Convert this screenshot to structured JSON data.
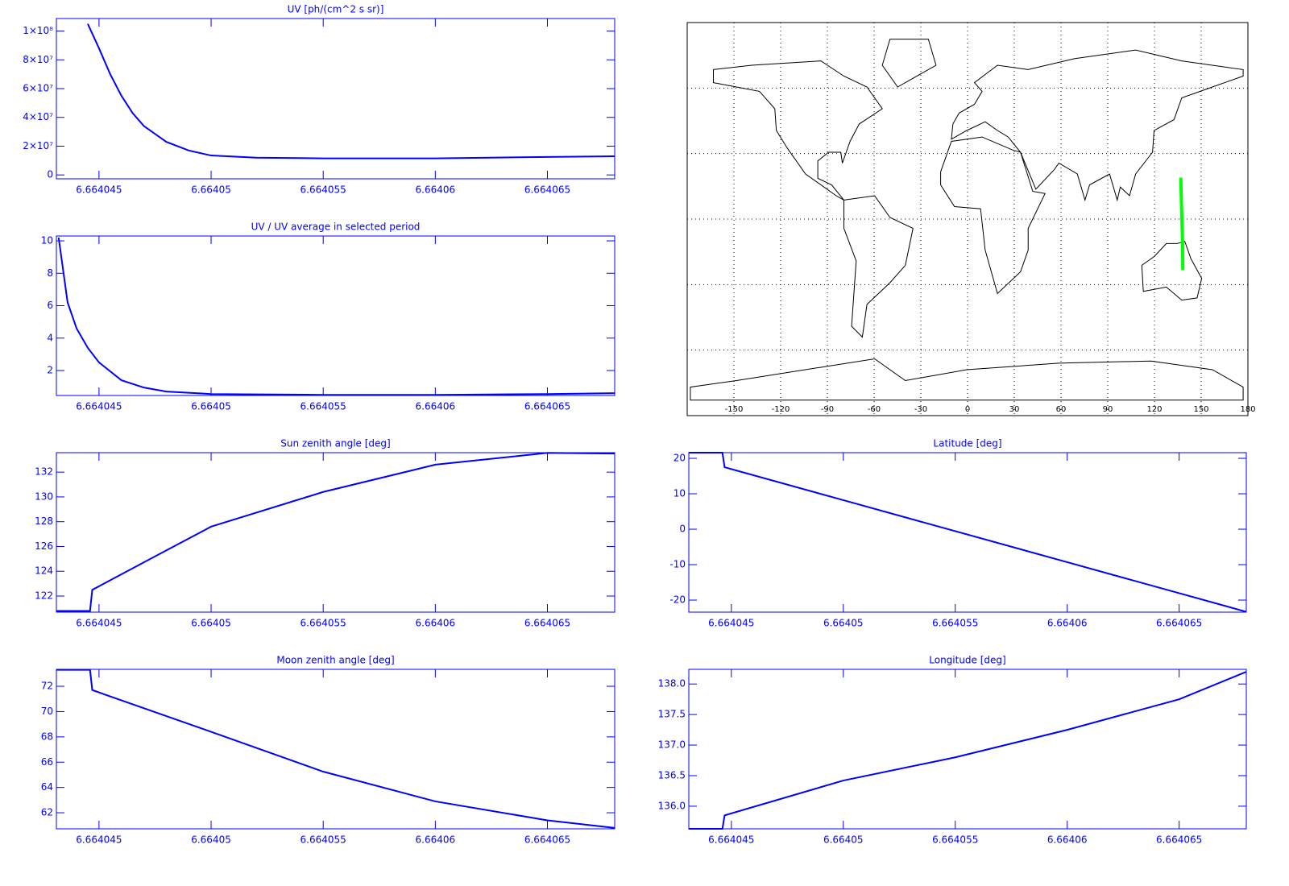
{
  "chart_data": [
    {
      "type": "line",
      "title": "UV [ph/(cm^2 s sr)]",
      "color": "#0000ff",
      "x": [
        6.6640445,
        6.664045,
        6.6640455,
        6.664046,
        6.6640465,
        6.664047,
        6.664048,
        6.664049,
        6.66405,
        6.664052,
        6.664055,
        6.66406,
        6.664065,
        6.664068
      ],
      "values": [
        105000000,
        88000000,
        70000000,
        55000000,
        43000000,
        34000000,
        23000000,
        17000000,
        13500000,
        12000000,
        11500000,
        11500000,
        12500000,
        13000000
      ],
      "xlim": [
        6.6640431,
        6.664068
      ],
      "ylim": [
        -2700000,
        108700000
      ],
      "xticks": [
        6.664045,
        6.66405,
        6.664055,
        6.66406,
        6.664065
      ],
      "yticks": [
        0,
        {
          "value": 20000000,
          "label": "2×10⁷"
        },
        {
          "value": 40000000,
          "label": "4×10⁷"
        },
        {
          "value": 60000000,
          "label": "6×10⁷"
        },
        {
          "value": 80000000,
          "label": "8×10⁷"
        },
        {
          "value": 100000000,
          "label": "1×10⁸"
        }
      ]
    },
    {
      "type": "line",
      "title": "UV / UV average in selected period",
      "color": "#0000ff",
      "x": [
        6.6640432,
        6.6640436,
        6.664044,
        6.6640445,
        6.664045,
        6.664046,
        6.664047,
        6.664048,
        6.66405,
        6.664055,
        6.66406,
        6.664065,
        6.664068
      ],
      "values": [
        10.2,
        6.2,
        4.6,
        3.4,
        2.5,
        1.4,
        0.95,
        0.7,
        0.55,
        0.5,
        0.5,
        0.55,
        0.6
      ],
      "xlim": [
        6.6640431,
        6.664068
      ],
      "ylim": [
        0.46,
        10.3
      ],
      "xticks": [
        6.664045,
        6.66405,
        6.664055,
        6.66406,
        6.664065
      ],
      "yticks": [
        2,
        4,
        6,
        8,
        10
      ]
    },
    {
      "type": "map",
      "color": "#00ff00",
      "lon": [
        136.9,
        137.4,
        138.0,
        138.2
      ],
      "lat": [
        19,
        5,
        -10,
        -23.3
      ],
      "xlim": [
        -180,
        180
      ],
      "ylim": [
        -90,
        90
      ],
      "xticks": [
        -150,
        -120,
        -90,
        -60,
        -30,
        0,
        30,
        60,
        90,
        120,
        150,
        180
      ],
      "lat_grid": [
        -60,
        -30,
        0,
        30,
        60,
        90
      ]
    },
    {
      "type": "line",
      "title": "Sun zenith angle [deg]",
      "color": "#0000ff",
      "x": [
        6.6640431,
        6.6640446,
        6.6640447,
        6.6640475,
        6.66405,
        6.664055,
        6.66406,
        6.664065,
        6.664068
      ],
      "values": [
        120.8,
        120.8,
        122.5,
        125.2,
        127.6,
        130.4,
        132.6,
        133.55,
        133.5
      ],
      "xlim": [
        6.6640431,
        6.664068
      ],
      "ylim": [
        120.7,
        133.57
      ],
      "xticks": [
        6.664045,
        6.66405,
        6.664055,
        6.66406,
        6.664065
      ],
      "yticks": [
        122,
        124,
        126,
        128,
        130,
        132
      ]
    },
    {
      "type": "line",
      "title": "Latitude [deg]",
      "color": "#0000ff",
      "x": [
        6.6640431,
        6.6640446,
        6.6640447,
        6.66405,
        6.664055,
        6.66406,
        6.664065,
        6.664068
      ],
      "values": [
        21.6,
        21.6,
        17.5,
        8.2,
        -0.55,
        -9.3,
        -18.05,
        -23.3
      ],
      "xlim": [
        6.6640431,
        6.664068
      ],
      "ylim": [
        -23.4,
        21.6
      ],
      "xticks": [
        6.664045,
        6.66405,
        6.664055,
        6.66406,
        6.664065
      ],
      "yticks": [
        -20,
        -10,
        0,
        10,
        20
      ]
    },
    {
      "type": "line",
      "title": "Moon zenith angle [deg]",
      "color": "#0000ff",
      "x": [
        6.6640431,
        6.6640446,
        6.6640447,
        6.66405,
        6.664055,
        6.66406,
        6.664065,
        6.664068
      ],
      "values": [
        73.3,
        73.3,
        71.7,
        68.4,
        65.25,
        62.9,
        61.4,
        60.8
      ],
      "xlim": [
        6.6640431,
        6.664068
      ],
      "ylim": [
        60.73,
        73.34
      ],
      "xticks": [
        6.664045,
        6.66405,
        6.664055,
        6.66406,
        6.664065
      ],
      "yticks": [
        62,
        64,
        66,
        68,
        70,
        72
      ]
    },
    {
      "type": "line",
      "title": "Longitude [deg]",
      "color": "#0000ff",
      "x": [
        6.6640431,
        6.6640446,
        6.6640447,
        6.66405,
        6.664055,
        6.66406,
        6.664065,
        6.664068
      ],
      "values": [
        135.63,
        135.63,
        135.85,
        136.42,
        136.8,
        137.25,
        137.75,
        138.2
      ],
      "xlim": [
        6.6640431,
        6.664068
      ],
      "ylim": [
        135.63,
        138.24
      ],
      "xticks": [
        6.664045,
        6.66405,
        6.664055,
        6.66406,
        6.664065
      ],
      "yticks": [
        {
          "value": 136,
          "label": "136.0"
        },
        136.5,
        {
          "value": 137,
          "label": "137.0"
        },
        137.5,
        {
          "value": 138,
          "label": "138.0"
        }
      ]
    }
  ]
}
